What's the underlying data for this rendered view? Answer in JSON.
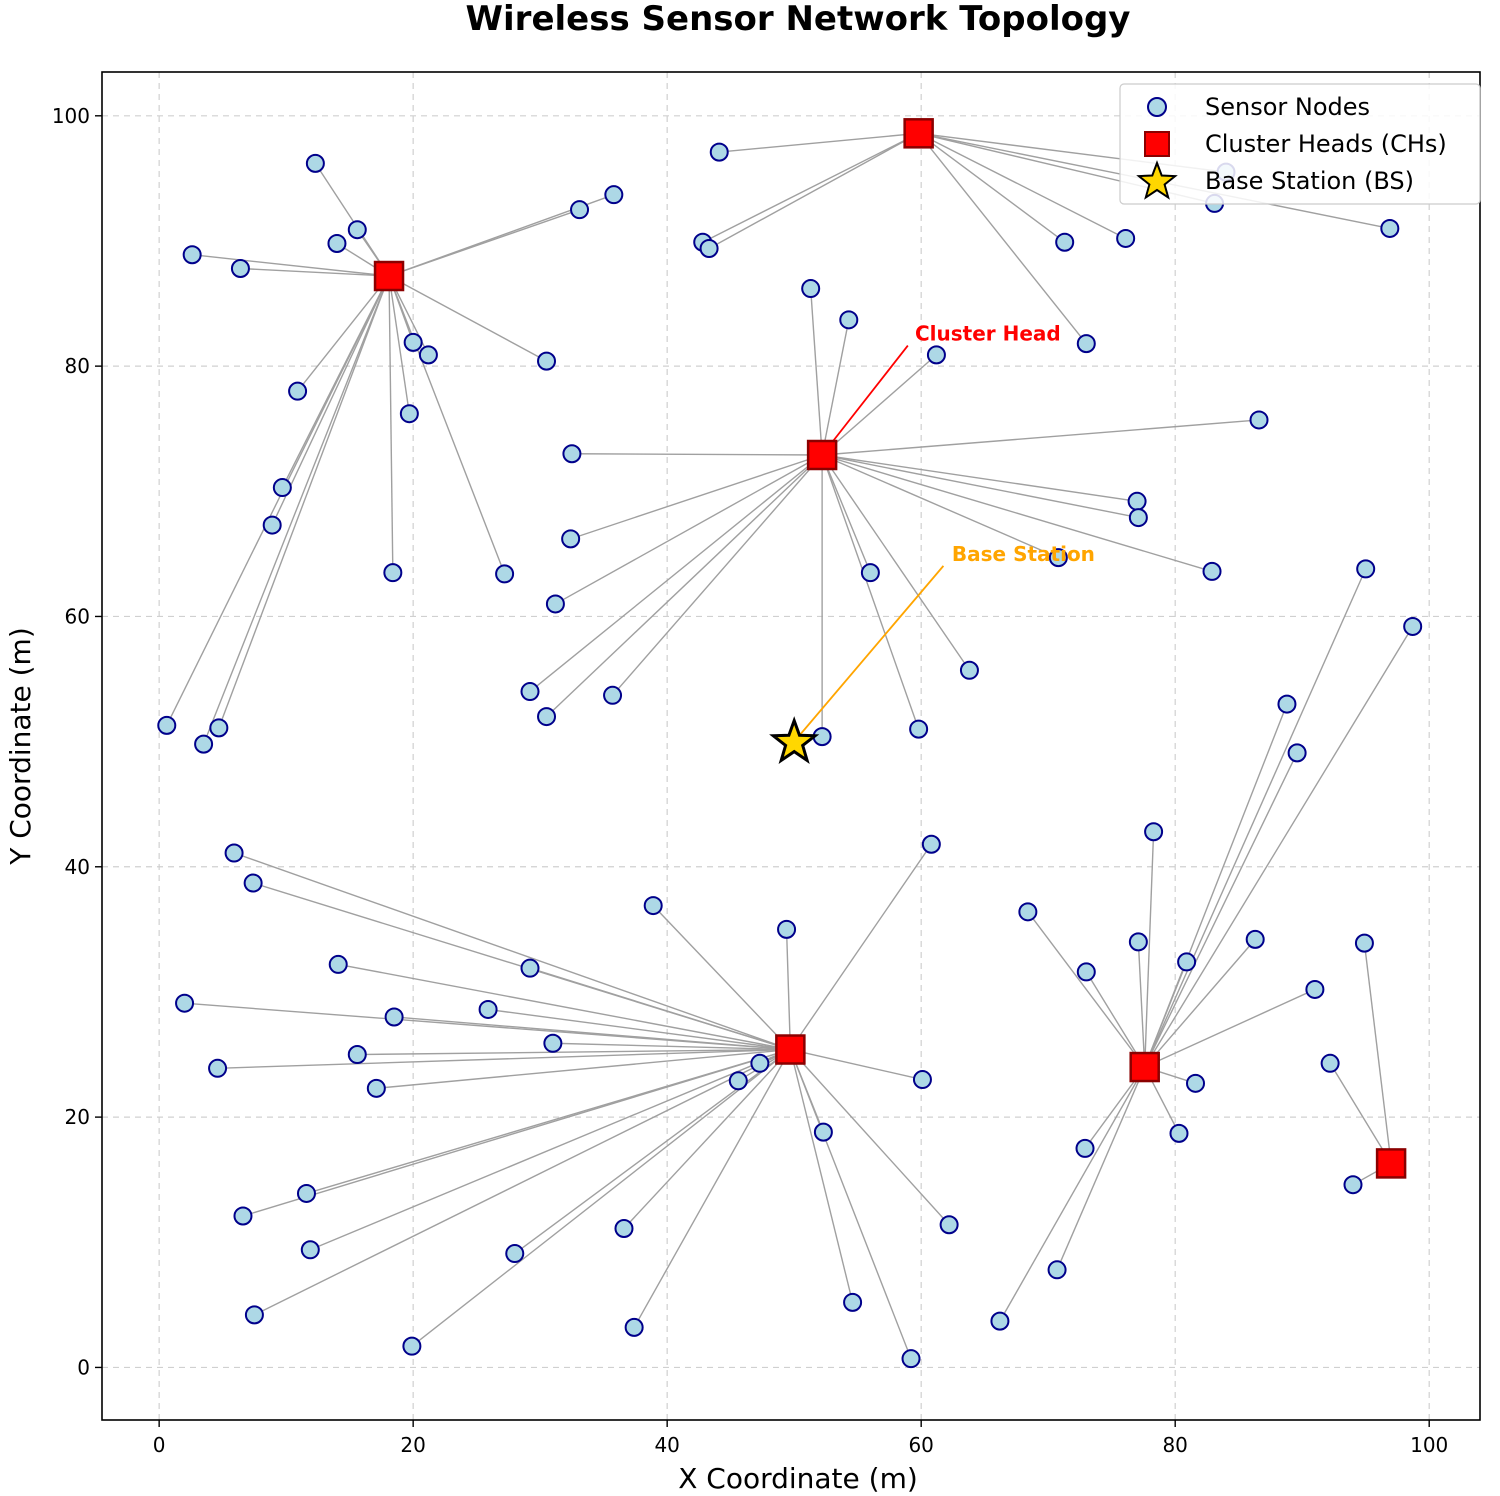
{
  "chart_data": {
    "type": "scatter",
    "title": "Wireless Sensor Network Topology",
    "xlabel": "X Coordinate (m)",
    "ylabel": "Y Coordinate (m)",
    "xlim": [
      -4.5,
      104
    ],
    "ylim": [
      -4.2,
      103.5
    ],
    "xticks": [
      0,
      20,
      40,
      60,
      80,
      100
    ],
    "yticks": [
      0,
      20,
      40,
      60,
      80,
      100
    ],
    "grid": true,
    "legend_position": "top-right",
    "legend": [
      "Sensor Nodes",
      "Cluster Heads (CHs)",
      "Base Station (BS)"
    ],
    "colors": {
      "node_fill": "#add8e6",
      "node_edge": "#00008b",
      "ch_fill": "#ff0000",
      "ch_edge": "#8b0000",
      "bs_fill": "#ffd700",
      "bs_edge": "#000000",
      "link": "#a0a0a0",
      "grid": "#d0d0d0",
      "ch_annotation": "#ff0000",
      "bs_annotation": "#ffa500"
    },
    "base_station": {
      "x": 50,
      "y": 50
    },
    "clusters": [
      {
        "head": {
          "x": 18.1,
          "y": 87.2
        },
        "members": [
          [
            12.3,
            96.2
          ],
          [
            15.6,
            90.9
          ],
          [
            14.0,
            89.8
          ],
          [
            2.6,
            88.9
          ],
          [
            6.4,
            87.8
          ],
          [
            33.1,
            92.5
          ],
          [
            35.8,
            93.7
          ],
          [
            20.0,
            81.9
          ],
          [
            21.2,
            80.9
          ],
          [
            30.5,
            80.4
          ],
          [
            10.9,
            78.0
          ],
          [
            19.7,
            76.2
          ],
          [
            9.7,
            70.3
          ],
          [
            8.9,
            67.3
          ],
          [
            18.4,
            63.5
          ],
          [
            27.2,
            63.4
          ],
          [
            0.6,
            51.3
          ],
          [
            4.7,
            51.1
          ],
          [
            3.5,
            49.8
          ]
        ]
      },
      {
        "head": {
          "x": 59.8,
          "y": 98.6
        },
        "members": [
          [
            44.1,
            97.1
          ],
          [
            42.8,
            89.9
          ],
          [
            43.3,
            89.4
          ],
          [
            71.3,
            89.9
          ],
          [
            76.1,
            90.2
          ],
          [
            73.0,
            81.8
          ],
          [
            83.1,
            93.0
          ],
          [
            96.9,
            91.0
          ],
          [
            84.0,
            95.5
          ]
        ]
      },
      {
        "head": {
          "x": 52.2,
          "y": 72.9
        },
        "members": [
          [
            51.3,
            86.2
          ],
          [
            54.3,
            83.7
          ],
          [
            61.2,
            80.9
          ],
          [
            32.5,
            73.0
          ],
          [
            86.6,
            75.7
          ],
          [
            77.0,
            69.2
          ],
          [
            77.1,
            67.9
          ],
          [
            32.4,
            66.2
          ],
          [
            31.2,
            61.0
          ],
          [
            56.0,
            63.5
          ],
          [
            70.8,
            64.7
          ],
          [
            82.9,
            63.6
          ],
          [
            63.8,
            55.7
          ],
          [
            29.2,
            54.0
          ],
          [
            30.5,
            52.0
          ],
          [
            35.7,
            53.7
          ],
          [
            59.8,
            51.0
          ],
          [
            52.2,
            50.4
          ]
        ]
      },
      {
        "head": {
          "x": 49.7,
          "y": 25.4
        },
        "members": [
          [
            5.9,
            41.1
          ],
          [
            7.4,
            38.7
          ],
          [
            38.9,
            36.9
          ],
          [
            49.4,
            35.0
          ],
          [
            60.8,
            41.8
          ],
          [
            14.1,
            32.2
          ],
          [
            29.2,
            31.9
          ],
          [
            2.0,
            29.1
          ],
          [
            18.5,
            28.0
          ],
          [
            25.9,
            28.6
          ],
          [
            31.0,
            25.9
          ],
          [
            15.6,
            25.0
          ],
          [
            4.6,
            23.9
          ],
          [
            17.1,
            22.3
          ],
          [
            45.6,
            22.9
          ],
          [
            47.3,
            24.3
          ],
          [
            60.1,
            23.0
          ],
          [
            52.3,
            18.8
          ],
          [
            11.6,
            13.9
          ],
          [
            6.6,
            12.1
          ],
          [
            11.9,
            9.4
          ],
          [
            28.0,
            9.1
          ],
          [
            36.6,
            11.1
          ],
          [
            62.2,
            11.4
          ],
          [
            7.5,
            4.2
          ],
          [
            19.9,
            1.7
          ],
          [
            37.4,
            3.2
          ],
          [
            54.6,
            5.2
          ],
          [
            59.2,
            0.7
          ]
        ]
      },
      {
        "head": {
          "x": 77.6,
          "y": 24.0
        },
        "members": [
          [
            68.4,
            36.4
          ],
          [
            77.1,
            34.0
          ],
          [
            78.3,
            42.8
          ],
          [
            73.0,
            31.6
          ],
          [
            80.9,
            32.4
          ],
          [
            86.3,
            34.2
          ],
          [
            91.0,
            30.2
          ],
          [
            81.6,
            22.7
          ],
          [
            80.3,
            18.7
          ],
          [
            72.9,
            17.5
          ],
          [
            70.7,
            7.8
          ],
          [
            66.2,
            3.7
          ],
          [
            95.0,
            63.8
          ],
          [
            98.7,
            59.2
          ],
          [
            88.8,
            53.0
          ],
          [
            89.6,
            49.1
          ]
        ]
      },
      {
        "head": {
          "x": 97.0,
          "y": 16.3
        },
        "members": [
          [
            94.9,
            33.9
          ],
          [
            92.2,
            24.3
          ],
          [
            94.0,
            14.6
          ]
        ]
      }
    ],
    "annotations": [
      {
        "text": "Cluster Head",
        "xy": [
          52.2,
          72.9
        ],
        "text_xy": [
          62.1,
          82.6
        ]
      },
      {
        "text": "Base Station",
        "xy": [
          50.0,
          50.0
        ],
        "text_xy": [
          64.9,
          65.0
        ]
      }
    ]
  }
}
